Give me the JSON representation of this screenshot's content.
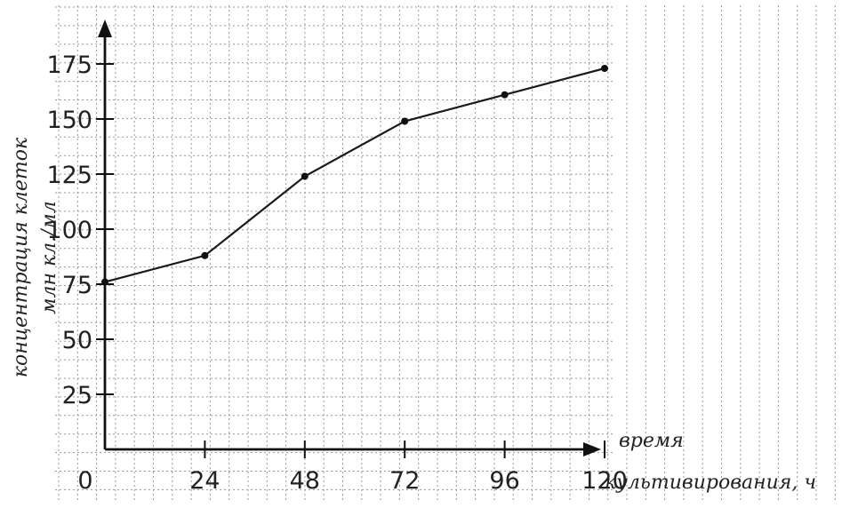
{
  "chart_data": {
    "type": "line",
    "xlabel_lines": [
      "время",
      "культивирования, ч"
    ],
    "ylabel_lines": [
      "концентрация клеток",
      "млн кл./мл"
    ],
    "x_ticks": [
      "24",
      "48",
      "72",
      "96",
      "120"
    ],
    "y_ticks": [
      "25",
      "50",
      "75",
      "100",
      "125",
      "150",
      "175"
    ],
    "origin_label": "0",
    "xlim": [
      0,
      120
    ],
    "ylim": [
      0,
      175
    ],
    "grid": true,
    "series": [
      {
        "x": [
          0,
          24,
          48,
          72,
          96,
          120
        ],
        "y": [
          76,
          88,
          124,
          149,
          161,
          173
        ]
      }
    ],
    "colors": {
      "line": "#1a1a1a",
      "grid": "#9a9a9a",
      "axis": "#111111"
    }
  }
}
